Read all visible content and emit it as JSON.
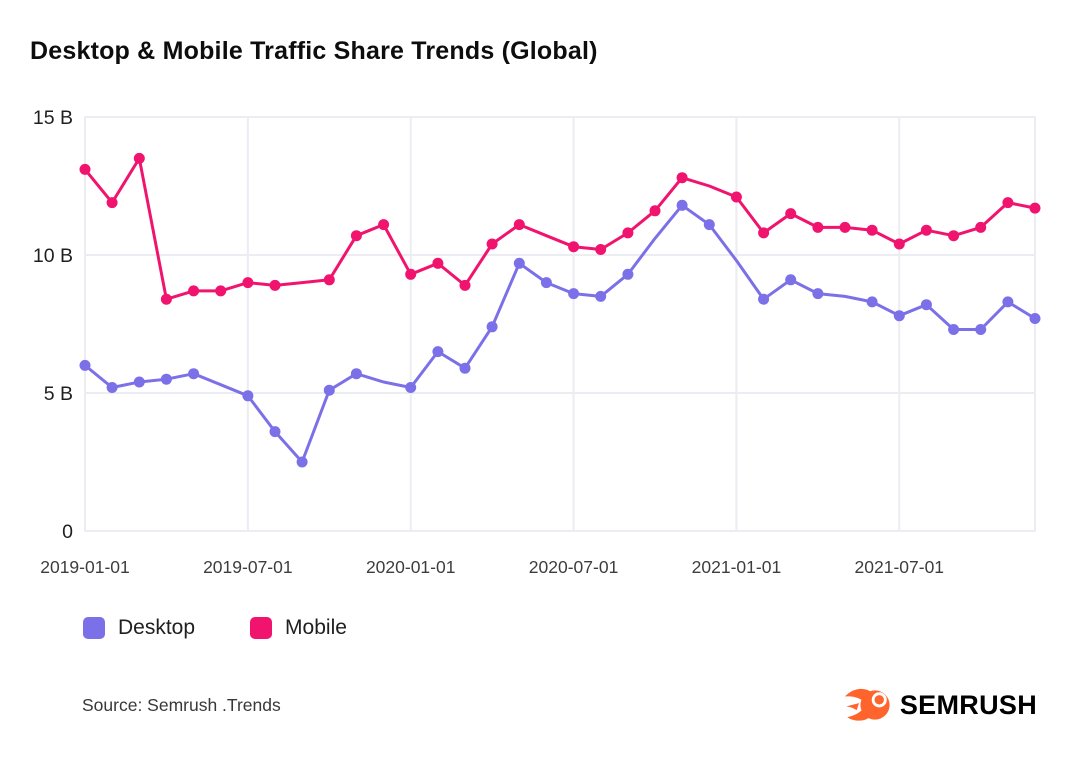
{
  "title": "Desktop & Mobile Traffic Share Trends (Global)",
  "source_note": "Source: Semrush .Trends",
  "brand": {
    "logo_text": "SEMRUSH",
    "logo_color": "#FF642D",
    "logo_text_color": "#000000"
  },
  "legend": [
    {
      "label": "Desktop",
      "color": "#7C70E8"
    },
    {
      "label": "Mobile",
      "color": "#F0146E"
    }
  ],
  "colors": {
    "grid": "#ECECF3",
    "axis_label": "#3D3D3D",
    "tick_label": "#1F1F1F",
    "title": "#0D0D0D"
  },
  "chart_data": {
    "type": "line",
    "title": "Desktop & Mobile Traffic Share Trends (Global)",
    "xlabel": "",
    "ylabel": "",
    "unit": "B",
    "ylim": [
      0,
      15
    ],
    "grid": true,
    "legend_position": "bottom",
    "y_ticks": [
      {
        "value": 0,
        "label": "0"
      },
      {
        "value": 5,
        "label": "5 B"
      },
      {
        "value": 10,
        "label": "10 B"
      },
      {
        "value": 15,
        "label": "15 B"
      }
    ],
    "x": [
      "2019-01-01",
      "2019-02-01",
      "2019-03-01",
      "2019-04-01",
      "2019-05-01",
      "2019-06-01",
      "2019-07-01",
      "2019-08-01",
      "2019-09-01",
      "2019-10-01",
      "2019-11-01",
      "2019-12-01",
      "2020-01-01",
      "2020-02-01",
      "2020-03-01",
      "2020-04-01",
      "2020-05-01",
      "2020-06-01",
      "2020-07-01",
      "2020-08-01",
      "2020-09-01",
      "2020-10-01",
      "2020-11-01",
      "2020-12-01",
      "2021-01-01",
      "2021-02-01",
      "2021-03-01",
      "2021-04-01",
      "2021-05-01",
      "2021-06-01",
      "2021-07-01",
      "2021-08-01",
      "2021-09-01",
      "2021-10-01",
      "2021-11-01",
      "2021-12-01"
    ],
    "x_tick_labels": [
      "2019-01-01",
      "2019-07-01",
      "2020-01-01",
      "2020-07-01",
      "2021-01-01",
      "2021-07-01"
    ],
    "series": [
      {
        "name": "Desktop",
        "color": "#7C70E8",
        "values": [
          6.0,
          5.2,
          5.4,
          5.5,
          5.7,
          5.3,
          4.9,
          3.6,
          2.5,
          5.1,
          5.7,
          5.4,
          5.2,
          6.5,
          5.9,
          7.4,
          9.7,
          9.0,
          8.6,
          8.5,
          9.3,
          10.6,
          11.8,
          11.1,
          9.8,
          8.4,
          9.1,
          8.6,
          8.5,
          8.3,
          7.8,
          8.2,
          7.3,
          7.3,
          8.3,
          7.7
        ],
        "no_marker_indices": [
          5,
          11,
          21,
          24,
          28
        ]
      },
      {
        "name": "Mobile",
        "color": "#F0146E",
        "values": [
          13.1,
          11.9,
          13.5,
          8.4,
          8.7,
          8.7,
          9.0,
          8.9,
          9.0,
          9.1,
          10.7,
          11.1,
          9.3,
          9.7,
          8.9,
          10.4,
          11.1,
          10.7,
          10.3,
          10.2,
          10.8,
          11.6,
          12.8,
          12.5,
          12.1,
          10.8,
          11.5,
          11.0,
          11.0,
          10.9,
          10.4,
          10.9,
          10.7,
          11.0,
          11.9,
          11.7
        ],
        "no_marker_indices": [
          8,
          17,
          23
        ]
      }
    ]
  }
}
